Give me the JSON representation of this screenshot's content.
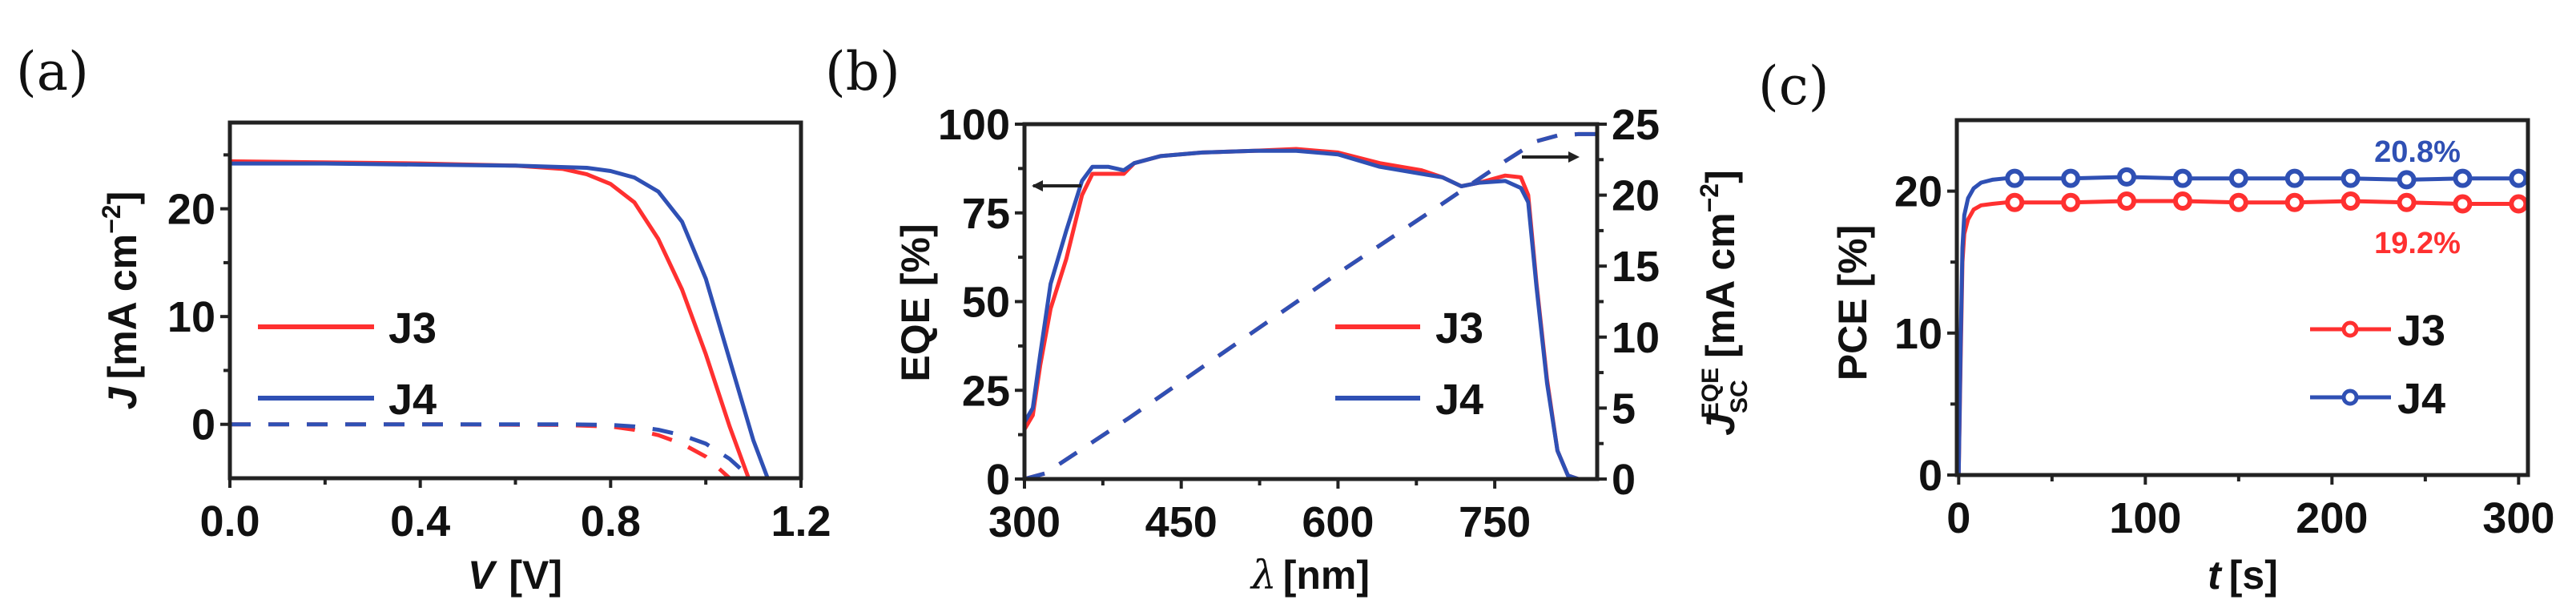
{
  "colors": {
    "J3": "#ff3030",
    "J4": "#2f50b4",
    "axis": "#222222"
  },
  "panels": {
    "a": {
      "label": "(a)"
    },
    "b": {
      "label": "(b)"
    },
    "c": {
      "label": "(c)"
    }
  },
  "chart_data": [
    {
      "id": "a",
      "type": "line",
      "title": "",
      "xlabel": "V [V]",
      "ylabel": "J [mA cm^-2]",
      "xlim": [
        0.0,
        1.2
      ],
      "ylim": [
        -5,
        28
      ],
      "xticks": [
        "0.0",
        "0.4",
        "0.8",
        "1.2"
      ],
      "xtick_values": [
        0.0,
        0.4,
        0.8,
        1.2
      ],
      "yticks": [
        "0",
        "10",
        "20"
      ],
      "ytick_values": [
        0,
        10,
        20
      ],
      "grid": false,
      "legend": {
        "entries": [
          "J3",
          "J4"
        ],
        "position": "center-left"
      },
      "series": [
        {
          "name": "J3",
          "style": "solid",
          "x": [
            0.0,
            0.2,
            0.4,
            0.6,
            0.7,
            0.75,
            0.8,
            0.85,
            0.9,
            0.95,
            1.0,
            1.05,
            1.09
          ],
          "y": [
            24.4,
            24.3,
            24.2,
            24.0,
            23.7,
            23.2,
            22.3,
            20.6,
            17.2,
            12.5,
            6.5,
            -0.2,
            -5
          ]
        },
        {
          "name": "J4",
          "style": "solid",
          "x": [
            0.0,
            0.2,
            0.4,
            0.6,
            0.75,
            0.8,
            0.85,
            0.9,
            0.95,
            1.0,
            1.05,
            1.1,
            1.13
          ],
          "y": [
            24.2,
            24.2,
            24.1,
            24.0,
            23.8,
            23.5,
            22.9,
            21.6,
            18.8,
            13.5,
            6.0,
            -1.5,
            -5
          ]
        },
        {
          "name": "J3 dark",
          "style": "dashed",
          "x": [
            0.0,
            0.4,
            0.7,
            0.8,
            0.85,
            0.9,
            0.95,
            1.0,
            1.03,
            1.05
          ],
          "y": [
            0.0,
            0.0,
            -0.05,
            -0.2,
            -0.5,
            -1.0,
            -1.8,
            -3.0,
            -4.2,
            -5
          ]
        },
        {
          "name": "J4 dark",
          "style": "dashed",
          "x": [
            0.0,
            0.4,
            0.7,
            0.8,
            0.85,
            0.9,
            0.95,
            1.0,
            1.05,
            1.08
          ],
          "y": [
            0.0,
            0.0,
            0.0,
            -0.05,
            -0.2,
            -0.5,
            -1.0,
            -1.8,
            -3.2,
            -4.4
          ]
        }
      ]
    },
    {
      "id": "b",
      "type": "line",
      "title": "",
      "xlabel": "λ [nm]",
      "ylabel": "EQE [%]",
      "ylabel_right": "J_SC^EQE [mA cm^-2]",
      "xlim": [
        300,
        848
      ],
      "ylim": [
        0,
        100
      ],
      "ylim_right": [
        0,
        25
      ],
      "xticks": [
        "300",
        "450",
        "600",
        "750"
      ],
      "xtick_values": [
        300,
        450,
        600,
        750
      ],
      "yticks": [
        "0",
        "25",
        "50",
        "75",
        "100"
      ],
      "ytick_values": [
        0,
        25,
        50,
        75,
        100
      ],
      "yticks_right": [
        "0",
        "5",
        "10",
        "15",
        "20",
        "25"
      ],
      "ytick_values_right": [
        0,
        5,
        10,
        15,
        20,
        25
      ],
      "grid": false,
      "legend": {
        "entries": [
          "J3",
          "J4"
        ],
        "position": "center-right"
      },
      "annotations": [
        {
          "type": "arrow-left",
          "at_x": 350,
          "at_y": 83,
          "meaning": "EQE uses left axis"
        },
        {
          "type": "arrow-right",
          "at_x": 790,
          "at_y": 22.8,
          "meaning": "Jsc uses right axis",
          "axis": "right"
        }
      ],
      "series": [
        {
          "name": "J3",
          "axis": "left",
          "style": "solid",
          "x": [
            300,
            308,
            315,
            325,
            340,
            355,
            365,
            380,
            395,
            405,
            430,
            470,
            520,
            560,
            600,
            640,
            680,
            700,
            718,
            735,
            760,
            775,
            782,
            790,
            800,
            810,
            820,
            830,
            848
          ],
          "y": [
            14,
            18,
            32,
            48,
            62,
            80,
            86,
            86,
            86,
            89,
            91,
            92,
            92.5,
            93,
            92,
            89,
            87,
            85,
            82.5,
            83.5,
            85.5,
            85,
            80,
            55,
            28,
            8,
            1,
            0,
            0
          ]
        },
        {
          "name": "J4",
          "axis": "left",
          "style": "solid",
          "x": [
            300,
            308,
            315,
            325,
            340,
            355,
            365,
            380,
            395,
            405,
            430,
            470,
            520,
            560,
            600,
            640,
            680,
            700,
            718,
            735,
            760,
            775,
            782,
            790,
            800,
            810,
            820,
            830,
            848
          ],
          "y": [
            16,
            20,
            35,
            55,
            70,
            84,
            88,
            88,
            87,
            89,
            91,
            92,
            92.5,
            92.5,
            91.5,
            88,
            86,
            85,
            82.5,
            83.5,
            84,
            82,
            78,
            54,
            27,
            8,
            1,
            0,
            0
          ]
        },
        {
          "name": "J3 Jsc",
          "axis": "right",
          "style": "dashed",
          "x": [
            300,
            320,
            400,
            500,
            600,
            700,
            760,
            790,
            810,
            830,
            848
          ],
          "y": [
            0,
            0.4,
            4.3,
            9.4,
            14.5,
            19.4,
            22.4,
            23.8,
            24.2,
            24.3,
            24.3
          ]
        },
        {
          "name": "J4 Jsc",
          "axis": "right",
          "style": "dashed",
          "x": [
            300,
            320,
            400,
            500,
            600,
            700,
            760,
            790,
            810,
            830,
            848
          ],
          "y": [
            0,
            0.4,
            4.3,
            9.4,
            14.5,
            19.4,
            22.4,
            23.8,
            24.2,
            24.3,
            24.3
          ]
        }
      ]
    },
    {
      "id": "c",
      "type": "line",
      "title": "",
      "xlabel": "t [s]",
      "ylabel": "PCE [%]",
      "xlim": [
        -1,
        305
      ],
      "ylim": [
        0,
        25
      ],
      "xticks": [
        "0",
        "100",
        "200",
        "300"
      ],
      "xtick_values": [
        0,
        100,
        200,
        300
      ],
      "yticks": [
        "0",
        "10",
        "20"
      ],
      "ytick_values": [
        0,
        10,
        20
      ],
      "grid": false,
      "legend": {
        "entries": [
          "J3",
          "J4"
        ],
        "position": "center-right"
      },
      "annotations": [
        {
          "text": "20.8%",
          "series": "J4",
          "x": 248,
          "y": 22.9
        },
        {
          "text": "19.2%",
          "series": "J3",
          "x": 248,
          "y": 16.7
        }
      ],
      "series": [
        {
          "name": "J3",
          "style": "solid-markers",
          "x": [
            0,
            1,
            2,
            3,
            5,
            8,
            12,
            18,
            25,
            30,
            60,
            90,
            120,
            150,
            180,
            210,
            240,
            270,
            300
          ],
          "y": [
            0,
            8,
            15,
            17,
            18,
            18.7,
            19.0,
            19.1,
            19.2,
            19.2,
            19.2,
            19.3,
            19.3,
            19.2,
            19.2,
            19.3,
            19.2,
            19.1,
            19.1
          ],
          "marker_x": [
            30,
            60,
            90,
            120,
            150,
            180,
            210,
            240,
            270,
            300
          ]
        },
        {
          "name": "J4",
          "style": "solid-markers",
          "x": [
            0,
            1,
            2,
            3,
            5,
            8,
            12,
            18,
            25,
            30,
            60,
            90,
            120,
            150,
            180,
            210,
            240,
            270,
            300
          ],
          "y": [
            0,
            9,
            16,
            18.3,
            19.5,
            20.2,
            20.6,
            20.8,
            20.9,
            20.9,
            20.9,
            21.0,
            20.9,
            20.9,
            20.9,
            20.9,
            20.8,
            20.9,
            20.9
          ],
          "marker_x": [
            30,
            60,
            90,
            120,
            150,
            180,
            210,
            240,
            270,
            300
          ]
        }
      ]
    }
  ]
}
